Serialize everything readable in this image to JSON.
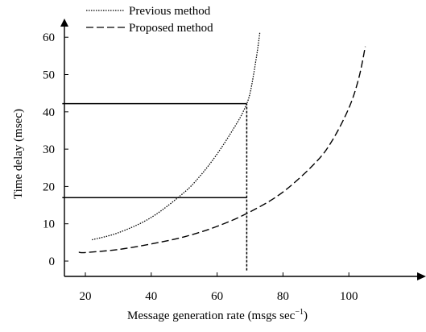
{
  "chart_data": {
    "type": "line",
    "xlabel": "Message generation rate (msgs sec",
    "xlabel_sup": "−1",
    "xlabel_end": ")",
    "ylabel": "Time delay (msec)",
    "xlim": [
      13,
      125
    ],
    "ylim": [
      -4,
      65
    ],
    "xticks": [
      20,
      40,
      60,
      80,
      100
    ],
    "yticks": [
      0,
      10,
      20,
      30,
      40,
      50,
      60
    ],
    "grid": false,
    "legend": "top-left",
    "series": [
      {
        "name": "Previous method",
        "style": "dotted",
        "points": [
          [
            22,
            5.7
          ],
          [
            30,
            7.6
          ],
          [
            40,
            11.7
          ],
          [
            50,
            18.4
          ],
          [
            55,
            23
          ],
          [
            60,
            28.7
          ],
          [
            65,
            35.5
          ],
          [
            68,
            40.2
          ],
          [
            70,
            45
          ],
          [
            72,
            55
          ],
          [
            73,
            61.5
          ]
        ]
      },
      {
        "name": "Proposed method",
        "style": "dashed",
        "points": [
          [
            18,
            2.4
          ],
          [
            20,
            2.3
          ],
          [
            30,
            3.1
          ],
          [
            40,
            4.6
          ],
          [
            50,
            6.5
          ],
          [
            60,
            9.3
          ],
          [
            70,
            13.2
          ],
          [
            80,
            18.5
          ],
          [
            90,
            26.5
          ],
          [
            95,
            32.4
          ],
          [
            100,
            41
          ],
          [
            103,
            49
          ],
          [
            105,
            57.5
          ]
        ]
      }
    ],
    "reference_lines": [
      {
        "orient": "horizontal",
        "y": 42.2,
        "x_from": 13,
        "x_to": 69,
        "style": "solid"
      },
      {
        "orient": "horizontal",
        "y": 17,
        "x_from": 13,
        "x_to": 69,
        "style": "solid"
      },
      {
        "orient": "vertical",
        "x": 69,
        "y_from": -2.5,
        "y_to": 42.2,
        "style": "dashed"
      }
    ]
  }
}
